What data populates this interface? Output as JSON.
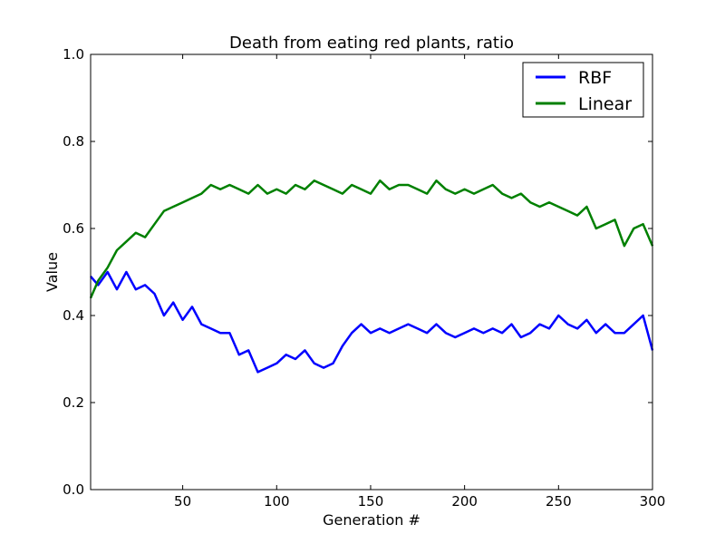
{
  "chart_data": {
    "type": "line",
    "title": "Death from eating red plants, ratio",
    "xlabel": "Generation #",
    "ylabel": "Value",
    "xlim": [
      1,
      300
    ],
    "ylim": [
      0.0,
      1.0
    ],
    "xticks": [
      50,
      100,
      150,
      200,
      250,
      300
    ],
    "xtick_labels": [
      "50",
      "100",
      "150",
      "200",
      "250",
      "300"
    ],
    "yticks": [
      0.0,
      0.2,
      0.4,
      0.6,
      0.8,
      1.0
    ],
    "ytick_labels": [
      "0.0",
      "0.2",
      "0.4",
      "0.6",
      "0.8",
      "1.0"
    ],
    "grid": false,
    "legend_position": "top-right",
    "series": [
      {
        "name": "RBF",
        "color": "#0000ff",
        "x": [
          1,
          5,
          10,
          15,
          20,
          25,
          30,
          35,
          40,
          45,
          50,
          55,
          60,
          65,
          70,
          75,
          80,
          85,
          90,
          95,
          100,
          105,
          110,
          115,
          120,
          125,
          130,
          135,
          140,
          145,
          150,
          155,
          160,
          165,
          170,
          175,
          180,
          185,
          190,
          195,
          200,
          205,
          210,
          215,
          220,
          225,
          230,
          235,
          240,
          245,
          250,
          255,
          260,
          265,
          270,
          275,
          280,
          285,
          290,
          295,
          300
        ],
        "y": [
          0.49,
          0.47,
          0.5,
          0.46,
          0.5,
          0.46,
          0.47,
          0.45,
          0.4,
          0.43,
          0.39,
          0.42,
          0.38,
          0.37,
          0.36,
          0.36,
          0.31,
          0.32,
          0.27,
          0.28,
          0.29,
          0.31,
          0.3,
          0.32,
          0.29,
          0.28,
          0.29,
          0.33,
          0.36,
          0.38,
          0.36,
          0.37,
          0.36,
          0.37,
          0.38,
          0.37,
          0.36,
          0.38,
          0.36,
          0.35,
          0.36,
          0.37,
          0.36,
          0.37,
          0.36,
          0.38,
          0.35,
          0.36,
          0.38,
          0.37,
          0.4,
          0.38,
          0.37,
          0.39,
          0.36,
          0.38,
          0.36,
          0.36,
          0.38,
          0.4,
          0.32
        ]
      },
      {
        "name": "Linear",
        "color": "#008000",
        "x": [
          1,
          5,
          10,
          15,
          20,
          25,
          30,
          35,
          40,
          45,
          50,
          55,
          60,
          65,
          70,
          75,
          80,
          85,
          90,
          95,
          100,
          105,
          110,
          115,
          120,
          125,
          130,
          135,
          140,
          145,
          150,
          155,
          160,
          165,
          170,
          175,
          180,
          185,
          190,
          195,
          200,
          205,
          210,
          215,
          220,
          225,
          230,
          235,
          240,
          245,
          250,
          255,
          260,
          265,
          270,
          275,
          280,
          285,
          290,
          295,
          300
        ],
        "y": [
          0.44,
          0.48,
          0.51,
          0.55,
          0.57,
          0.59,
          0.58,
          0.61,
          0.64,
          0.65,
          0.66,
          0.67,
          0.68,
          0.7,
          0.69,
          0.7,
          0.69,
          0.68,
          0.7,
          0.68,
          0.69,
          0.68,
          0.7,
          0.69,
          0.71,
          0.7,
          0.69,
          0.68,
          0.7,
          0.69,
          0.68,
          0.71,
          0.69,
          0.7,
          0.7,
          0.69,
          0.68,
          0.71,
          0.69,
          0.68,
          0.69,
          0.68,
          0.69,
          0.7,
          0.68,
          0.67,
          0.68,
          0.66,
          0.65,
          0.66,
          0.65,
          0.64,
          0.63,
          0.65,
          0.6,
          0.61,
          0.62,
          0.56,
          0.6,
          0.61,
          0.56
        ]
      }
    ]
  }
}
